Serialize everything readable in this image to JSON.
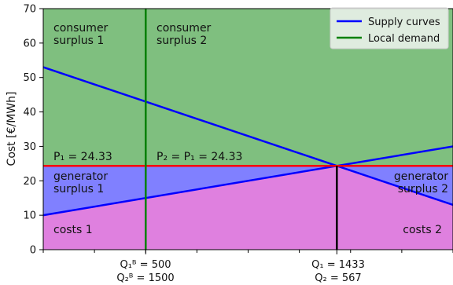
{
  "chart_data": {
    "type": "line",
    "ylabel": "Cost [€/MWh]",
    "xlim": [
      0,
      2000
    ],
    "ylim": [
      0,
      70
    ],
    "yticks": [
      0,
      10,
      20,
      30,
      40,
      50,
      60,
      70
    ],
    "grid": false,
    "legend": {
      "placement": "top-right",
      "entries": [
        {
          "name": "Supply curves",
          "color": "#0000ff"
        },
        {
          "name": "Local demand",
          "color": "#008000"
        }
      ]
    },
    "series": [
      {
        "name": "Supply curves",
        "x": [
          0,
          2000
        ],
        "y": [
          10,
          30
        ]
      },
      {
        "name": "Supply curves",
        "x": [
          0,
          2000
        ],
        "y": [
          53,
          13
        ]
      }
    ],
    "vertical_lines": {
      "demand": {
        "x": 500,
        "color": "#008000"
      },
      "equilibrium": {
        "x": 1433,
        "y_top": 24.33,
        "color": "#000000"
      }
    },
    "price_line": {
      "y": 24.33,
      "color": "#ff0000"
    },
    "regions": [
      {
        "name": "consumer-surplus",
        "color": "#7fbf7f"
      },
      {
        "name": "generator-surplus",
        "color": "#8080ff"
      },
      {
        "name": "costs",
        "color": "#df80df"
      }
    ],
    "annotations": {
      "consumer_surplus_1": [
        "consumer",
        "surplus 1"
      ],
      "consumer_surplus_2": [
        "consumer",
        "surplus 2"
      ],
      "p1_label": "P₁ = 24.33",
      "p2_label": "P₂ = P₁ = 24.33",
      "generator_surplus_1": [
        "generator",
        "surplus 1"
      ],
      "generator_surplus_2": [
        "generator",
        "surplus 2"
      ],
      "costs_1": "costs 1",
      "costs_2": "costs 2"
    },
    "xtick_labels": [
      {
        "x": 500,
        "lines": [
          "Q₁ᴮ = 500",
          "Q₂ᴮ = 1500"
        ]
      },
      {
        "x": 1433,
        "lines": [
          "Q₁ = 1433",
          "Q₂ = 567"
        ]
      }
    ],
    "minor_xticks": [
      0,
      250,
      500,
      750,
      1000,
      1250,
      1500,
      1750,
      2000
    ]
  }
}
